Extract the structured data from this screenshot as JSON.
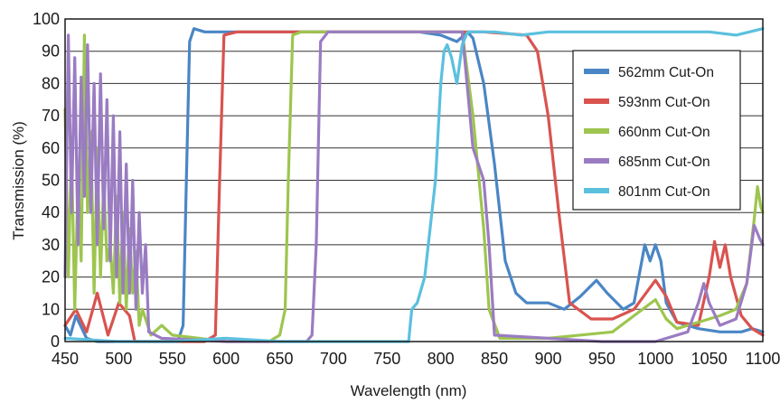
{
  "chart_data": {
    "type": "line",
    "title": "",
    "xlabel": "Wavelength (nm)",
    "ylabel": "Transmission (%)",
    "xlim": [
      450,
      1100
    ],
    "ylim": [
      0,
      100
    ],
    "xticks": [
      "450",
      "500",
      "550",
      "600",
      "650",
      "700",
      "750",
      "800",
      "850",
      "900",
      "950",
      "1000",
      "1050",
      "1100"
    ],
    "yticks": [
      "0",
      "10",
      "20",
      "30",
      "40",
      "50",
      "60",
      "70",
      "80",
      "90",
      "100"
    ],
    "grid": true,
    "legend_position": "top-right",
    "series": [
      {
        "name": "562mm Cut-On",
        "color": "#4a86c5",
        "points": [
          [
            450,
            5
          ],
          [
            455,
            2
          ],
          [
            460,
            8
          ],
          [
            470,
            1
          ],
          [
            480,
            0
          ],
          [
            500,
            0
          ],
          [
            540,
            0
          ],
          [
            555,
            0
          ],
          [
            560,
            5
          ],
          [
            563,
            50
          ],
          [
            566,
            93
          ],
          [
            570,
            97
          ],
          [
            580,
            96
          ],
          [
            600,
            96
          ],
          [
            620,
            96
          ],
          [
            650,
            96
          ],
          [
            700,
            96
          ],
          [
            750,
            96
          ],
          [
            780,
            96
          ],
          [
            800,
            95
          ],
          [
            815,
            93
          ],
          [
            825,
            96
          ],
          [
            830,
            94
          ],
          [
            840,
            80
          ],
          [
            850,
            55
          ],
          [
            860,
            25
          ],
          [
            870,
            15
          ],
          [
            880,
            12
          ],
          [
            900,
            12
          ],
          [
            915,
            10
          ],
          [
            930,
            14
          ],
          [
            945,
            19
          ],
          [
            955,
            15
          ],
          [
            970,
            10
          ],
          [
            980,
            12
          ],
          [
            990,
            30
          ],
          [
            995,
            25
          ],
          [
            1000,
            30
          ],
          [
            1005,
            25
          ],
          [
            1010,
            12
          ],
          [
            1020,
            6
          ],
          [
            1040,
            4
          ],
          [
            1060,
            3
          ],
          [
            1080,
            3
          ],
          [
            1090,
            4
          ],
          [
            1100,
            3
          ]
        ]
      },
      {
        "name": "593nm Cut-On",
        "color": "#d9534f",
        "points": [
          [
            450,
            5
          ],
          [
            460,
            10
          ],
          [
            470,
            3
          ],
          [
            480,
            15
          ],
          [
            490,
            2
          ],
          [
            500,
            12
          ],
          [
            510,
            8
          ],
          [
            515,
            0
          ],
          [
            530,
            0
          ],
          [
            580,
            0
          ],
          [
            590,
            2
          ],
          [
            594,
            50
          ],
          [
            598,
            95
          ],
          [
            610,
            96
          ],
          [
            650,
            96
          ],
          [
            700,
            96
          ],
          [
            750,
            96
          ],
          [
            800,
            96
          ],
          [
            840,
            96
          ],
          [
            880,
            95
          ],
          [
            890,
            90
          ],
          [
            900,
            70
          ],
          [
            910,
            40
          ],
          [
            920,
            12
          ],
          [
            940,
            7
          ],
          [
            960,
            7
          ],
          [
            980,
            10
          ],
          [
            1000,
            19
          ],
          [
            1010,
            14
          ],
          [
            1020,
            6
          ],
          [
            1040,
            5
          ],
          [
            1050,
            20
          ],
          [
            1055,
            31
          ],
          [
            1060,
            23
          ],
          [
            1065,
            30
          ],
          [
            1070,
            20
          ],
          [
            1080,
            8
          ],
          [
            1090,
            4
          ],
          [
            1100,
            2
          ]
        ]
      },
      {
        "name": "660nm Cut-On",
        "color": "#9dc54f",
        "points": [
          [
            450,
            72
          ],
          [
            453,
            20
          ],
          [
            456,
            60
          ],
          [
            459,
            10
          ],
          [
            462,
            50
          ],
          [
            465,
            25
          ],
          [
            468,
            95
          ],
          [
            471,
            40
          ],
          [
            474,
            65
          ],
          [
            477,
            15
          ],
          [
            480,
            60
          ],
          [
            483,
            20
          ],
          [
            486,
            50
          ],
          [
            489,
            25
          ],
          [
            492,
            30
          ],
          [
            495,
            15
          ],
          [
            498,
            45
          ],
          [
            501,
            12
          ],
          [
            504,
            40
          ],
          [
            507,
            10
          ],
          [
            510,
            35
          ],
          [
            513,
            15
          ],
          [
            516,
            28
          ],
          [
            519,
            5
          ],
          [
            522,
            10
          ],
          [
            530,
            2
          ],
          [
            540,
            5
          ],
          [
            550,
            2
          ],
          [
            600,
            0
          ],
          [
            640,
            0
          ],
          [
            650,
            2
          ],
          [
            655,
            10
          ],
          [
            658,
            50
          ],
          [
            662,
            95
          ],
          [
            670,
            96
          ],
          [
            700,
            96
          ],
          [
            750,
            96
          ],
          [
            800,
            96
          ],
          [
            820,
            96
          ],
          [
            830,
            70
          ],
          [
            840,
            35
          ],
          [
            845,
            10
          ],
          [
            855,
            1
          ],
          [
            900,
            1
          ],
          [
            960,
            3
          ],
          [
            980,
            8
          ],
          [
            1000,
            13
          ],
          [
            1010,
            7
          ],
          [
            1020,
            4
          ],
          [
            1040,
            6
          ],
          [
            1060,
            8
          ],
          [
            1075,
            10
          ],
          [
            1085,
            18
          ],
          [
            1092,
            38
          ],
          [
            1095,
            48
          ],
          [
            1098,
            42
          ],
          [
            1100,
            40
          ]
        ]
      },
      {
        "name": "685nm Cut-On",
        "color": "#9a7cc2",
        "points": [
          [
            450,
            20
          ],
          [
            453,
            95
          ],
          [
            456,
            40
          ],
          [
            459,
            88
          ],
          [
            462,
            30
          ],
          [
            465,
            82
          ],
          [
            468,
            45
          ],
          [
            471,
            92
          ],
          [
            474,
            40
          ],
          [
            477,
            80
          ],
          [
            480,
            30
          ],
          [
            483,
            83
          ],
          [
            486,
            35
          ],
          [
            489,
            75
          ],
          [
            492,
            25
          ],
          [
            495,
            70
          ],
          [
            498,
            20
          ],
          [
            501,
            65
          ],
          [
            504,
            15
          ],
          [
            507,
            55
          ],
          [
            510,
            15
          ],
          [
            513,
            50
          ],
          [
            516,
            10
          ],
          [
            519,
            40
          ],
          [
            522,
            15
          ],
          [
            525,
            30
          ],
          [
            528,
            3
          ],
          [
            540,
            1
          ],
          [
            600,
            0
          ],
          [
            650,
            0
          ],
          [
            675,
            0
          ],
          [
            680,
            2
          ],
          [
            684,
            30
          ],
          [
            688,
            93
          ],
          [
            695,
            96
          ],
          [
            750,
            96
          ],
          [
            800,
            96
          ],
          [
            820,
            96
          ],
          [
            830,
            60
          ],
          [
            840,
            50
          ],
          [
            845,
            30
          ],
          [
            850,
            2
          ],
          [
            900,
            1
          ],
          [
            950,
            0
          ],
          [
            1000,
            0
          ],
          [
            1030,
            3
          ],
          [
            1040,
            12
          ],
          [
            1045,
            18
          ],
          [
            1050,
            12
          ],
          [
            1060,
            5
          ],
          [
            1075,
            7
          ],
          [
            1085,
            18
          ],
          [
            1092,
            36
          ],
          [
            1097,
            32
          ],
          [
            1100,
            30
          ]
        ]
      },
      {
        "name": "801nm Cut-On",
        "color": "#5bc0de",
        "points": [
          [
            450,
            1
          ],
          [
            500,
            0
          ],
          [
            550,
            0
          ],
          [
            600,
            1
          ],
          [
            650,
            0
          ],
          [
            700,
            0
          ],
          [
            750,
            0
          ],
          [
            770,
            0
          ],
          [
            773,
            10
          ],
          [
            778,
            12
          ],
          [
            785,
            20
          ],
          [
            795,
            50
          ],
          [
            800,
            80
          ],
          [
            803,
            90
          ],
          [
            806,
            92
          ],
          [
            810,
            88
          ],
          [
            815,
            80
          ],
          [
            820,
            92
          ],
          [
            825,
            96
          ],
          [
            850,
            96
          ],
          [
            875,
            95
          ],
          [
            900,
            96
          ],
          [
            950,
            96
          ],
          [
            1000,
            96
          ],
          [
            1050,
            96
          ],
          [
            1075,
            95
          ],
          [
            1100,
            97
          ]
        ]
      }
    ]
  }
}
